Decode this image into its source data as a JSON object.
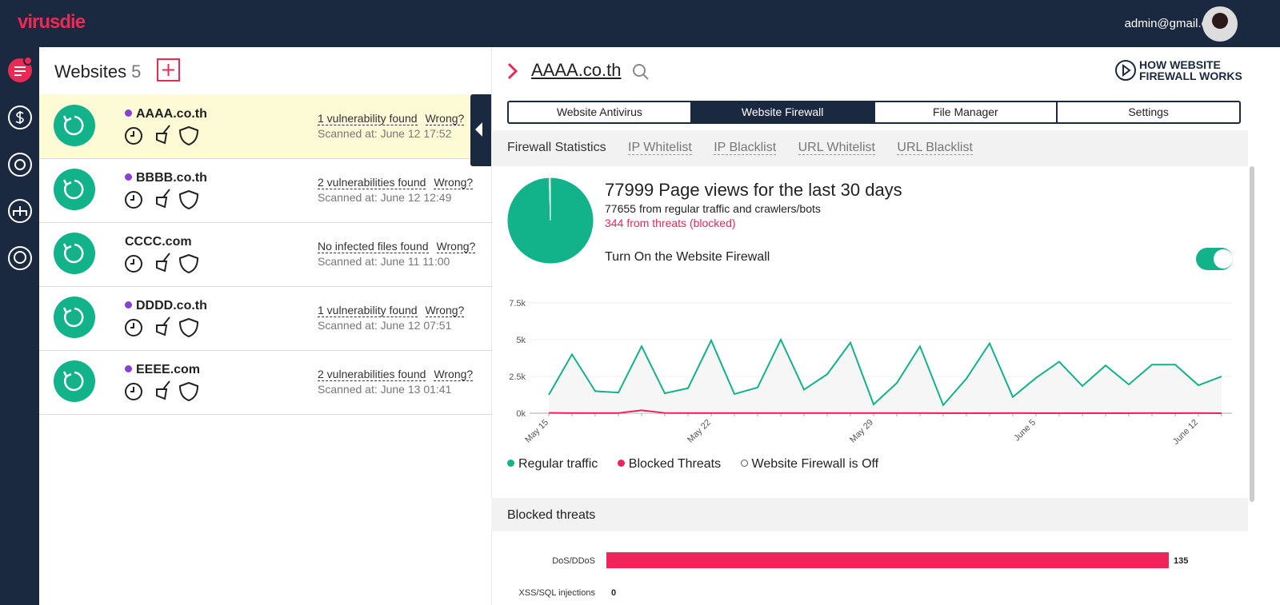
{
  "header": {
    "logo": "virusdie",
    "user": "admin@gmail.com"
  },
  "sites_panel": {
    "title": "Websites",
    "count": 5,
    "wrong_label": "Wrong?",
    "sites": [
      {
        "name": "AAAA.co.th",
        "status": "1 vulnerability found",
        "scanned": "Scanned at: June 12 17:52"
      },
      {
        "name": "BBBB.co.th",
        "status": "2 vulnerabilities found",
        "scanned": "Scanned at: June 12 12:49"
      },
      {
        "name": "CCCC.com",
        "status": "No infected files found",
        "scanned": "Scanned at: June 11 11:00"
      },
      {
        "name": "DDDD.co.th",
        "status": "1 vulnerability found",
        "scanned": "Scanned at: June 12 07:51"
      },
      {
        "name": "EEEE.com",
        "status": "2 vulnerabilities found",
        "scanned": "Scanned at: June 13 01:41"
      }
    ]
  },
  "detail": {
    "site": "AAAA.co.th",
    "how": [
      "HOW WEBSITE",
      "FIREWALL WORKS"
    ],
    "tabs": [
      "Website Antivirus",
      "Website Firewall",
      "File Manager",
      "Settings"
    ],
    "subtabs": [
      "Firewall Statistics",
      "IP Whitelist",
      "IP Blacklist",
      "URL Whitelist",
      "URL Blacklist"
    ],
    "toggle_label": "Turn On the Website Firewall",
    "off_legend": "Website Firewall is Off"
  },
  "chart_data": [
    {
      "type": "pie",
      "title": "Page views for the last 30 days",
      "total": 77999,
      "labels": [
        "from regular traffic and crawlers/bots",
        "from threats (blocked)"
      ],
      "values": [
        77655,
        344
      ],
      "colors": [
        "#12b38a",
        "#f0245a"
      ]
    },
    {
      "type": "line",
      "categories": [
        "May 15",
        null,
        null,
        null,
        null,
        null,
        null,
        "May 22",
        null,
        null,
        null,
        null,
        null,
        null,
        "May 29",
        null,
        null,
        null,
        null,
        null,
        null,
        "June 5",
        null,
        null,
        null,
        null,
        null,
        null,
        "June 12",
        null
      ],
      "series": [
        {
          "name": "Regular traffic",
          "color": "#12b38a",
          "values": [
            1250,
            4000,
            1500,
            1400,
            4550,
            1350,
            1700,
            4950,
            1300,
            1750,
            5000,
            1600,
            2650,
            4800,
            600,
            2050,
            4550,
            550,
            2350,
            4750,
            1100,
            2400,
            3500,
            1850,
            3250,
            1950,
            3300,
            3300,
            1900,
            2500
          ]
        },
        {
          "name": "Blocked Threats",
          "color": "#f0245a",
          "values": [
            20,
            10,
            10,
            10,
            200,
            15,
            5,
            5,
            5,
            5,
            10,
            5,
            5,
            5,
            5,
            5,
            5,
            0,
            0,
            0,
            5,
            0,
            0,
            0,
            0,
            0,
            5,
            0,
            5,
            0
          ]
        }
      ],
      "ylim": [
        0,
        7500
      ],
      "yticks": [
        {
          "value": 0,
          "label": "0k"
        },
        {
          "value": 2500,
          "label": "2.5k"
        },
        {
          "value": 5000,
          "label": "5k"
        },
        {
          "value": 7500,
          "label": "7.5k"
        }
      ],
      "grid": true
    },
    {
      "type": "bar",
      "orientation": "horizontal",
      "title": "Blocked threats",
      "categories": [
        "DoS/DDoS",
        "XSS/SQL injections"
      ],
      "values": [
        135,
        0
      ],
      "color": "#f0245a",
      "xlim": [
        0,
        140
      ]
    }
  ]
}
